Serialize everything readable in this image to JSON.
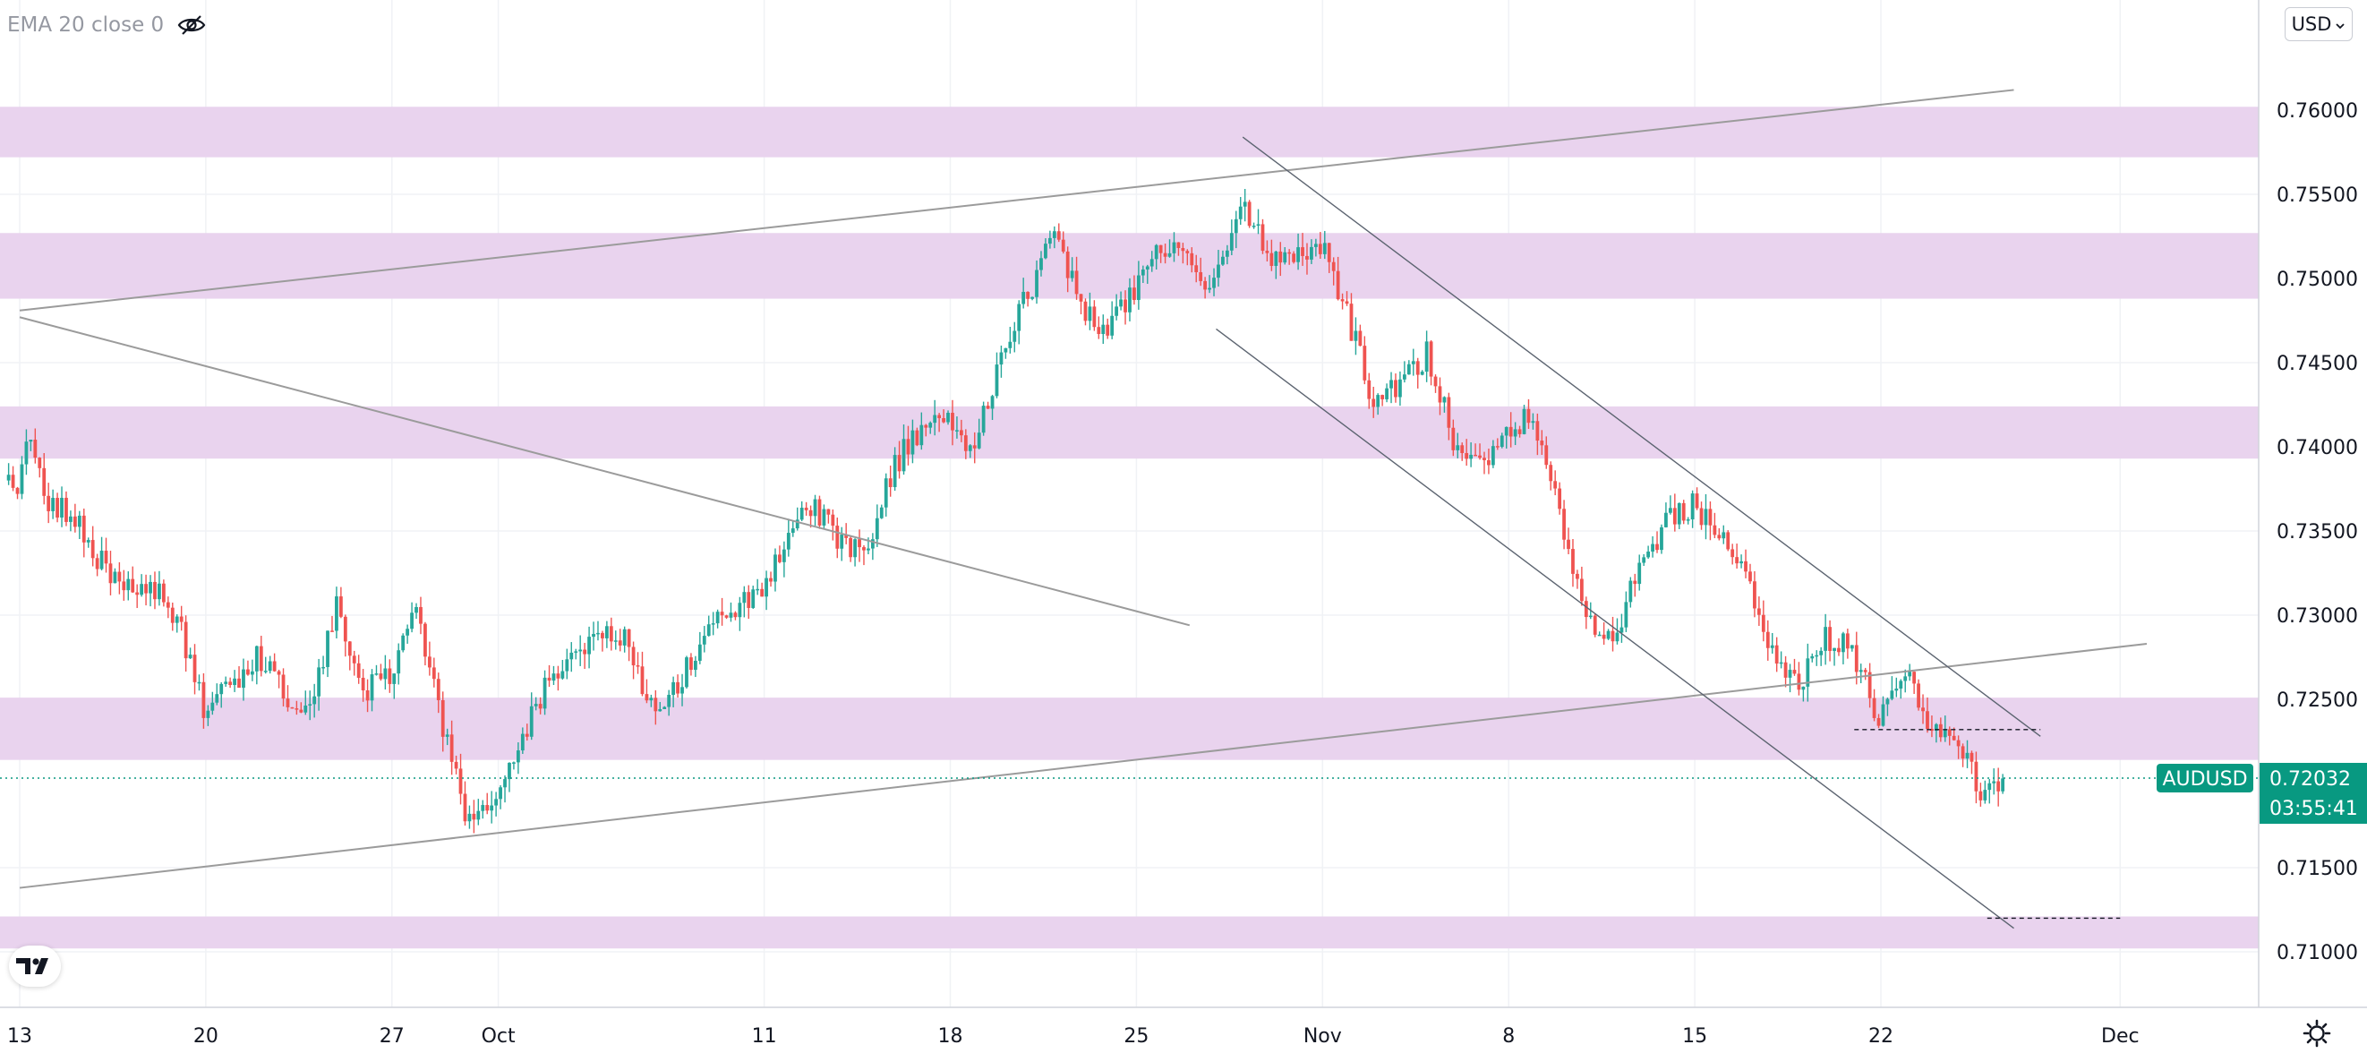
{
  "indicator": {
    "label": "EMA 20 close 0",
    "icon": "eye-crossed-icon"
  },
  "currency_button": {
    "label": "USD",
    "icon": "chevron-down-icon"
  },
  "logo": {
    "icon": "tradingview-logo-icon"
  },
  "settings": {
    "icon": "gear-icon"
  },
  "colors": {
    "up": "#26a69a",
    "down": "#ef5350",
    "zone": "#e9d3ee",
    "trendline": "#9b9b9b",
    "channel": "#5c6470",
    "price_tag": "#089981",
    "text": "#131722"
  },
  "chart_data": {
    "type": "candlestick",
    "symbol": "AUDUSD",
    "last_price": "0.72032",
    "countdown": "03:55:41",
    "y_axis": {
      "range": [
        0.7085,
        0.7625
      ],
      "ticks": [
        "0.76000",
        "0.75500",
        "0.75000",
        "0.74500",
        "0.74000",
        "0.73500",
        "0.73000",
        "0.72500",
        "0.71500",
        "0.71000"
      ]
    },
    "x_axis": {
      "range": [
        "2021-09-13",
        "2021-12-02"
      ],
      "ticks": [
        {
          "label": "13",
          "date": "2021-09-13"
        },
        {
          "label": "20",
          "date": "2021-09-20"
        },
        {
          "label": "27",
          "date": "2021-09-27"
        },
        {
          "label": "Oct",
          "date": "2021-10-01"
        },
        {
          "label": "11",
          "date": "2021-10-11"
        },
        {
          "label": "18",
          "date": "2021-10-18"
        },
        {
          "label": "25",
          "date": "2021-10-25"
        },
        {
          "label": "Nov",
          "date": "2021-11-01"
        },
        {
          "label": "8",
          "date": "2021-11-08"
        },
        {
          "label": "15",
          "date": "2021-11-15"
        },
        {
          "label": "22",
          "date": "2021-11-22"
        },
        {
          "label": "Dec",
          "date": "2021-12-01"
        }
      ]
    },
    "grid": true,
    "supply_demand_zones": [
      [
        0.7572,
        0.7602
      ],
      [
        0.7488,
        0.7527
      ],
      [
        0.7393,
        0.7424
      ],
      [
        0.7214,
        0.7251
      ],
      [
        0.7102,
        0.7121
      ]
    ],
    "price_path": [
      [
        "2021-09-13",
        0.738
      ],
      [
        "2021-09-13 08:00",
        0.7408
      ],
      [
        "2021-09-14",
        0.737
      ],
      [
        "2021-09-15",
        0.736
      ],
      [
        "2021-09-16",
        0.7335
      ],
      [
        "2021-09-17",
        0.7315
      ],
      [
        "2021-09-18",
        0.732
      ],
      [
        "2021-09-19",
        0.73
      ],
      [
        "2021-09-20",
        0.7245
      ],
      [
        "2021-09-21",
        0.7255
      ],
      [
        "2021-09-22",
        0.7275
      ],
      [
        "2021-09-23",
        0.7255
      ],
      [
        "2021-09-24",
        0.724
      ],
      [
        "2021-09-25",
        0.7305
      ],
      [
        "2021-09-26",
        0.7255
      ],
      [
        "2021-09-27",
        0.7265
      ],
      [
        "2021-09-28",
        0.73
      ],
      [
        "2021-09-29",
        0.7235
      ],
      [
        "2021-09-30",
        0.7175
      ],
      [
        "2021-10-01",
        0.7195
      ],
      [
        "2021-10-02",
        0.723
      ],
      [
        "2021-10-03",
        0.726
      ],
      [
        "2021-10-04",
        0.7275
      ],
      [
        "2021-10-05",
        0.729
      ],
      [
        "2021-10-06",
        0.7285
      ],
      [
        "2021-10-07",
        0.7235
      ],
      [
        "2021-10-08",
        0.7265
      ],
      [
        "2021-10-09",
        0.7295
      ],
      [
        "2021-10-10",
        0.7305
      ],
      [
        "2021-10-11",
        0.731
      ],
      [
        "2021-10-12",
        0.735
      ],
      [
        "2021-10-13",
        0.7365
      ],
      [
        "2021-10-14",
        0.734
      ],
      [
        "2021-10-15",
        0.7345
      ],
      [
        "2021-10-16",
        0.739
      ],
      [
        "2021-10-17",
        0.741
      ],
      [
        "2021-10-18",
        0.7415
      ],
      [
        "2021-10-19",
        0.74
      ],
      [
        "2021-10-20",
        0.7455
      ],
      [
        "2021-10-21",
        0.749
      ],
      [
        "2021-10-22",
        0.7525
      ],
      [
        "2021-10-23",
        0.7485
      ],
      [
        "2021-10-24",
        0.747
      ],
      [
        "2021-10-25",
        0.749
      ],
      [
        "2021-10-26",
        0.752
      ],
      [
        "2021-10-27",
        0.751
      ],
      [
        "2021-10-28",
        0.7495
      ],
      [
        "2021-10-29",
        0.7545
      ],
      [
        "2021-10-30",
        0.7515
      ],
      [
        "2021-10-31",
        0.751
      ],
      [
        "2021-11-01",
        0.752
      ],
      [
        "2021-11-02",
        0.748
      ],
      [
        "2021-11-03",
        0.7425
      ],
      [
        "2021-11-04",
        0.744
      ],
      [
        "2021-11-05",
        0.7455
      ],
      [
        "2021-11-06",
        0.7405
      ],
      [
        "2021-11-07",
        0.739
      ],
      [
        "2021-11-08",
        0.7405
      ],
      [
        "2021-11-09",
        0.742
      ],
      [
        "2021-11-10",
        0.736
      ],
      [
        "2021-11-11",
        0.73
      ],
      [
        "2021-11-12",
        0.7285
      ],
      [
        "2021-11-13",
        0.733
      ],
      [
        "2021-11-14",
        0.7355
      ],
      [
        "2021-11-15",
        0.7365
      ],
      [
        "2021-11-16",
        0.735
      ],
      [
        "2021-11-17",
        0.732
      ],
      [
        "2021-11-18",
        0.728
      ],
      [
        "2021-11-19",
        0.726
      ],
      [
        "2021-11-20",
        0.7285
      ],
      [
        "2021-11-21",
        0.728
      ],
      [
        "2021-11-22",
        0.724
      ],
      [
        "2021-11-23",
        0.7265
      ],
      [
        "2021-11-24",
        0.723
      ],
      [
        "2021-11-25",
        0.7225
      ],
      [
        "2021-11-26",
        0.719
      ],
      [
        "2021-11-26 12:00",
        0.7203
      ]
    ],
    "drawings": [
      {
        "type": "trendline",
        "from": [
          "2021-09-13",
          0.7481
        ],
        "to": [
          "2021-11-27",
          0.7612
        ]
      },
      {
        "type": "trendline",
        "from": [
          "2021-09-13",
          0.7477
        ],
        "to": [
          "2021-10-27",
          0.7294
        ]
      },
      {
        "type": "trendline",
        "from": [
          "2021-09-13",
          0.7138
        ],
        "to": [
          "2021-12-02",
          0.7283
        ]
      },
      {
        "type": "channel-line",
        "from": [
          "2021-10-29",
          0.7584
        ],
        "to": [
          "2021-11-28",
          0.7228
        ]
      },
      {
        "type": "channel-line",
        "from": [
          "2021-10-28",
          0.747
        ],
        "to": [
          "2021-11-27",
          0.7114
        ]
      },
      {
        "type": "horizontal-dashed",
        "from": [
          "2021-11-21",
          0.7232
        ],
        "to": [
          "2021-11-28",
          0.7232
        ]
      },
      {
        "type": "horizontal-dashed",
        "from": [
          "2021-11-26",
          0.712
        ],
        "to": [
          "2021-12-01",
          0.712
        ]
      }
    ]
  }
}
